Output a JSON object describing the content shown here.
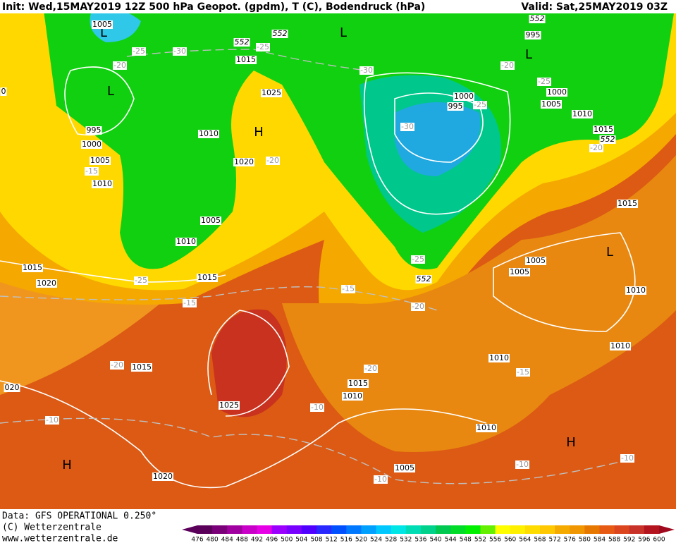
{
  "header": {
    "left": "Init: Wed,15MAY2019 12Z 500 hPa Geopot. (gpdm), T (C), Bodendruck (hPa)",
    "right": "Valid: Sat,25MAY2019 03Z"
  },
  "footer": {
    "lines": [
      "Data: GFS OPERATIONAL 0.250°",
      "(C) Wetterzentrale",
      "www.wetterzentrale.de"
    ]
  },
  "colorbar": {
    "ticks": [
      476,
      480,
      484,
      488,
      492,
      496,
      500,
      504,
      508,
      512,
      516,
      520,
      524,
      528,
      532,
      536,
      540,
      544,
      548,
      552,
      556,
      560,
      564,
      568,
      572,
      576,
      580,
      584,
      588,
      592,
      596,
      600
    ],
    "colors": [
      "#5a005a",
      "#7a007a",
      "#a000a0",
      "#c800c8",
      "#e600e6",
      "#9b00ff",
      "#7800ff",
      "#5000ff",
      "#2828ff",
      "#0050ff",
      "#0078ff",
      "#00a0ff",
      "#00c8ff",
      "#00e6e6",
      "#00dcb4",
      "#00d28c",
      "#00c850",
      "#00dc28",
      "#00f000",
      "#64f000",
      "#ffff00",
      "#fff000",
      "#ffdc00",
      "#ffc800",
      "#f5aa00",
      "#f09600",
      "#e67800",
      "#e65a14",
      "#dc461e",
      "#c83228",
      "#b4141e",
      "#a00a1e"
    ]
  },
  "map_labels": [
    "L",
    "1005",
    "-25",
    "-30",
    "-20",
    "L",
    "995",
    "1000",
    "1005",
    "-15",
    "1010",
    "552",
    "552",
    "-25",
    "1015",
    "1025",
    "H",
    "1010",
    "1020",
    "-20",
    "L",
    "-30",
    "1000",
    "995",
    "-25",
    "-30",
    "552",
    "995",
    "L",
    "-20",
    "-25",
    "1000",
    "1005",
    "1010",
    "1015",
    "552",
    "-20",
    "1005",
    "1010",
    "1015",
    "-25",
    "1015",
    "1020",
    "0",
    "-15",
    "-15",
    "-25",
    "552",
    "-20",
    "1015",
    "L",
    "1005",
    "1005",
    "1010",
    "1010",
    "1010",
    "-15",
    "-20",
    "1015",
    "020",
    "1025",
    "-20",
    "1015",
    "1010",
    "-10",
    "-10",
    "H",
    "1020",
    "1010",
    "H",
    "-10",
    "-10",
    "1005",
    "-10"
  ]
}
